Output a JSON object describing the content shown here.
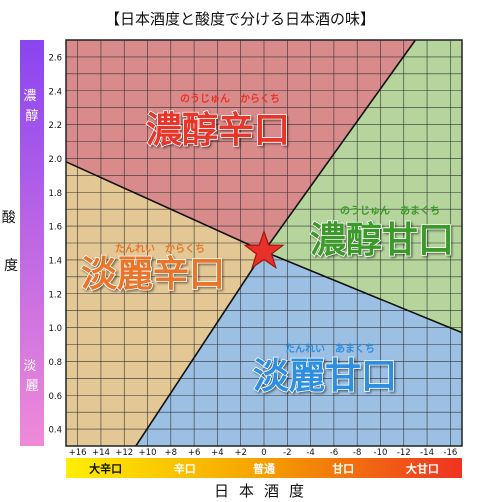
{
  "chart_data": {
    "type": "scatter",
    "title": "【日本酒度と酸度で分ける日本酒の味】",
    "xlabel": "日本酒度",
    "ylabel": "酸度",
    "x_ticks": [
      "+16",
      "+14",
      "+12",
      "+10",
      "+8",
      "+6",
      "+4",
      "+2",
      "0",
      "-2",
      "-4",
      "-6",
      "-8",
      "-10",
      "-12",
      "-14",
      "-16"
    ],
    "x_tick_values": [
      16,
      14,
      12,
      10,
      8,
      6,
      4,
      2,
      0,
      -2,
      -4,
      -6,
      -8,
      -10,
      -12,
      -14,
      -16
    ],
    "xlim": [
      17,
      -17
    ],
    "ylim": [
      0.3,
      2.7
    ],
    "y_ticks": [
      "0.4",
      "0.6",
      "0.8",
      "1.0",
      "1.2",
      "1.4",
      "1.6",
      "1.8",
      "2.0",
      "2.2",
      "2.4",
      "2.6"
    ],
    "y_tick_values": [
      0.4,
      0.6,
      0.8,
      1.0,
      1.2,
      1.4,
      1.6,
      1.8,
      2.0,
      2.2,
      2.4,
      2.6
    ],
    "grid": true,
    "center_point": {
      "x": 0,
      "y": 1.45
    },
    "dividing_lines": [
      {
        "from": [
          17,
          1.98
        ],
        "to": [
          0,
          1.45
        ]
      },
      {
        "from": [
          0,
          1.45
        ],
        "to": [
          -17,
          0.97
        ]
      },
      {
        "from": [
          0,
          1.45
        ],
        "to": [
          -13,
          2.7
        ]
      },
      {
        "from": [
          0,
          1.45
        ],
        "to": [
          11,
          0.3
        ]
      }
    ],
    "regions": [
      {
        "name": "濃醇辛口",
        "ruby": "のうじゅん　からくち",
        "color": "#d98a8a",
        "text_color": "#e8342a"
      },
      {
        "name": "濃醇甘口",
        "ruby": "のうじゅん　あまくち",
        "color": "#b5d59c",
        "text_color": "#3a9a2a"
      },
      {
        "name": "淡麗辛口",
        "ruby": "たんれい　からくち",
        "color": "#e3c896",
        "text_color": "#e8752a"
      },
      {
        "name": "淡麗甘口",
        "ruby": "たんれい　あまくち",
        "color": "#9cc0e4",
        "text_color": "#2f8ee0"
      }
    ],
    "acidity_bar": {
      "top_label": "濃醇",
      "bottom_label": "淡麗",
      "top_color": "#8a45f0",
      "bottom_color": "#f08ad8"
    },
    "sake_bar": {
      "labels": [
        "大辛口",
        "辛口",
        "普通",
        "甘口",
        "大甘口"
      ],
      "start_color": "#ffef00",
      "end_color": "#ee3322"
    }
  }
}
